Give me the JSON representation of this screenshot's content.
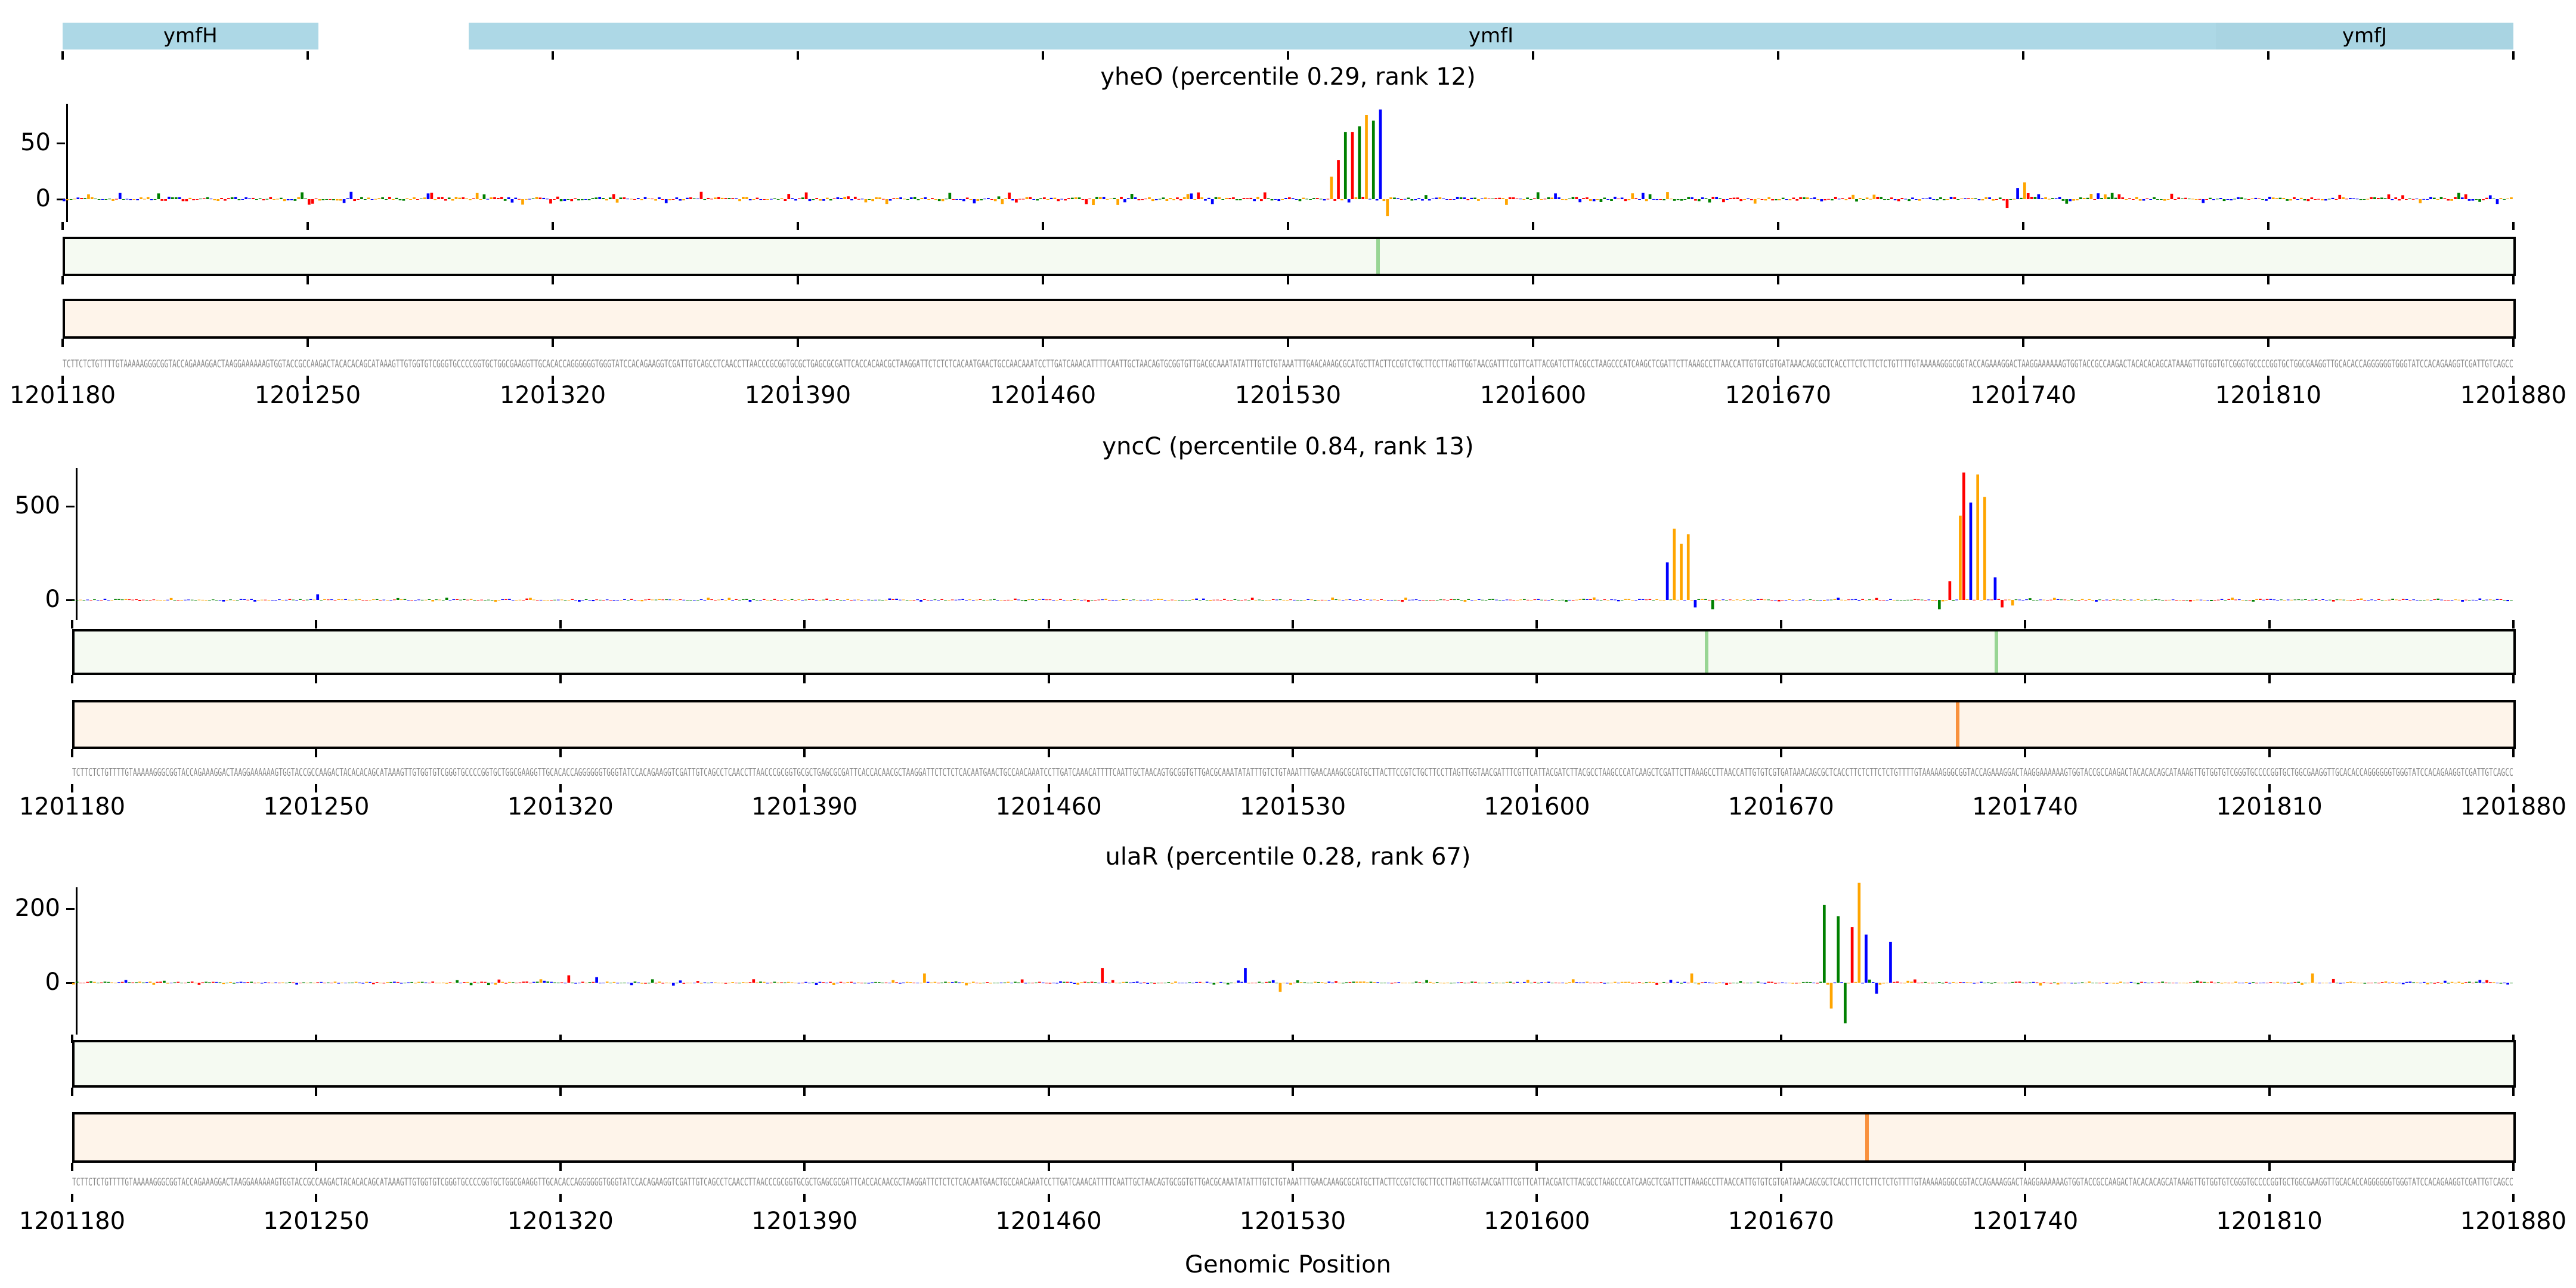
{
  "genes": [
    {
      "name": "ymfH",
      "start": 1201180,
      "end": 1201253
    },
    {
      "name": "ymfI",
      "start": 1201296,
      "end": 1201880
    },
    {
      "name": "ymfJ",
      "start": 1201795,
      "end": 1201880
    }
  ],
  "xlabel": "Genomic Position",
  "sequence": "TCTTCTCTGTTTTGTAAAAAGGGCGGTACCAGAAAGGACTAAGGAAAAAAGTGGTACCGCCAAGACTACACACAGCATAAAGTTGTGGTGTCGGGTGCCCCGGTGCTGGCGAAGGTTGCACACCAGGGGGGTGGGTATCCACAGAAGGTCGATTGTCAGCCTCAACCTTAACCCGCGGTGCGCTGAGCGCGATTCACCACAACGCTAAGGATTCTCTCTCACAATGAACTGCCAACAAATCCTTGATCAAACATTTTCAATTGCTAACAGTGCGGTGTTGACGCAAATATATTTGTCTGTAAATTTGAACAAAGCGCATGCTTACTTCCGTCTGCTTCCTTAGTTGGTAACGATTTCGTTCATTACGATCTTACGCCTAAGCCCATCAAGCTCGATTCTTAAAGCCTTAACCATTGTGTCGTGATAAACAGCGCTCACCTTCTCTTCTCTGTTTTGTAAAAAGGGCGGTACCAGAAAGGACTAAGGAAAAAAGTGGTACCGCCAAGACTACACACAGCATAAAGTTGTGGTGTCGGGTGCCCCGGTGCTGGCGAAGGTTGCACACCAGGGGGGTGGGTATCCACAGAAGGTCGATTGTCAGCC",
  "colors": {
    "A": "#ff0000",
    "C": "#0000ff",
    "G": "#ffa500",
    "T": "#008000",
    "green_hl": "#98d594",
    "orange_hl": "#f9913e"
  },
  "chart_data": [
    {
      "type": "bar",
      "title": "yheO (percentile 0.29, rank 12)",
      "xlim": [
        1201180,
        1201880
      ],
      "xticks": [
        1201180,
        1201250,
        1201320,
        1201390,
        1201460,
        1201530,
        1201600,
        1201670,
        1201740,
        1201810,
        1201880
      ],
      "ylim": [
        -20,
        80
      ],
      "yticks": [
        0,
        50
      ],
      "peaks": [
        {
          "x": 1201542,
          "y": 20
        },
        {
          "x": 1201544,
          "y": 35
        },
        {
          "x": 1201546,
          "y": 60
        },
        {
          "x": 1201548,
          "y": 60
        },
        {
          "x": 1201550,
          "y": 65
        },
        {
          "x": 1201552,
          "y": 75
        },
        {
          "x": 1201554,
          "y": 70
        },
        {
          "x": 1201556,
          "y": 80
        },
        {
          "x": 1201558,
          "y": -15
        },
        {
          "x": 1201740,
          "y": 15
        },
        {
          "x": 1201738,
          "y": 10
        },
        {
          "x": 1201735,
          "y": -8
        }
      ],
      "noise": 4,
      "green_marks": [
        1201555
      ],
      "orange_marks": []
    },
    {
      "type": "bar",
      "title": "yncC (percentile 0.84, rank 13)",
      "xlim": [
        1201180,
        1201880
      ],
      "xticks": [
        1201180,
        1201250,
        1201320,
        1201390,
        1201460,
        1201530,
        1201600,
        1201670,
        1201740,
        1201810,
        1201880
      ],
      "ylim": [
        -100,
        680
      ],
      "yticks": [
        0,
        500
      ],
      "peaks": [
        {
          "x": 1201250,
          "y": 30
        },
        {
          "x": 1201637,
          "y": 200
        },
        {
          "x": 1201639,
          "y": 380
        },
        {
          "x": 1201641,
          "y": 300
        },
        {
          "x": 1201643,
          "y": 350
        },
        {
          "x": 1201645,
          "y": -40
        },
        {
          "x": 1201650,
          "y": -50
        },
        {
          "x": 1201715,
          "y": -50
        },
        {
          "x": 1201718,
          "y": 100
        },
        {
          "x": 1201721,
          "y": 450
        },
        {
          "x": 1201722,
          "y": 680
        },
        {
          "x": 1201724,
          "y": 520
        },
        {
          "x": 1201726,
          "y": 670
        },
        {
          "x": 1201728,
          "y": 550
        },
        {
          "x": 1201731,
          "y": 120
        },
        {
          "x": 1201733,
          "y": -40
        },
        {
          "x": 1201736,
          "y": -30
        }
      ],
      "noise": 8,
      "green_marks": [
        1201648,
        1201731
      ],
      "orange_marks": [
        1201720
      ]
    },
    {
      "type": "bar",
      "title": "ulaR (percentile 0.28, rank 67)",
      "xlim": [
        1201180,
        1201880
      ],
      "xticks": [
        1201180,
        1201250,
        1201320,
        1201390,
        1201460,
        1201530,
        1201600,
        1201670,
        1201740,
        1201810,
        1201880
      ],
      "ylim": [
        -120,
        260
      ],
      "yticks": [
        0,
        200
      ],
      "peaks": [
        {
          "x": 1201322,
          "y": 20
        },
        {
          "x": 1201330,
          "y": 15
        },
        {
          "x": 1201424,
          "y": 25
        },
        {
          "x": 1201475,
          "y": 40
        },
        {
          "x": 1201516,
          "y": 40
        },
        {
          "x": 1201526,
          "y": -25
        },
        {
          "x": 1201644,
          "y": 25
        },
        {
          "x": 1201682,
          "y": 210
        },
        {
          "x": 1201684,
          "y": -70
        },
        {
          "x": 1201686,
          "y": 180
        },
        {
          "x": 1201688,
          "y": -110
        },
        {
          "x": 1201690,
          "y": 150
        },
        {
          "x": 1201692,
          "y": 270
        },
        {
          "x": 1201694,
          "y": 130
        },
        {
          "x": 1201697,
          "y": -30
        },
        {
          "x": 1201701,
          "y": 110
        },
        {
          "x": 1201822,
          "y": 25
        }
      ],
      "noise": 6,
      "green_marks": [],
      "orange_marks": [
        1201694
      ]
    }
  ]
}
